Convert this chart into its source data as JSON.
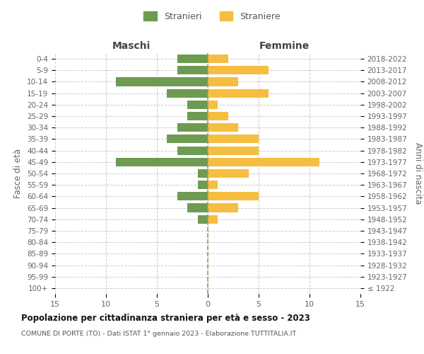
{
  "age_groups": [
    "100+",
    "95-99",
    "90-94",
    "85-89",
    "80-84",
    "75-79",
    "70-74",
    "65-69",
    "60-64",
    "55-59",
    "50-54",
    "45-49",
    "40-44",
    "35-39",
    "30-34",
    "25-29",
    "20-24",
    "15-19",
    "10-14",
    "5-9",
    "0-4"
  ],
  "birth_years": [
    "≤ 1922",
    "1923-1927",
    "1928-1932",
    "1933-1937",
    "1938-1942",
    "1943-1947",
    "1948-1952",
    "1953-1957",
    "1958-1962",
    "1963-1967",
    "1968-1972",
    "1973-1977",
    "1978-1982",
    "1983-1987",
    "1988-1992",
    "1993-1997",
    "1998-2002",
    "2003-2007",
    "2008-2012",
    "2013-2017",
    "2018-2022"
  ],
  "males": [
    0,
    0,
    0,
    0,
    0,
    0,
    1,
    2,
    3,
    1,
    1,
    9,
    3,
    4,
    3,
    2,
    2,
    4,
    9,
    3,
    3
  ],
  "females": [
    0,
    0,
    0,
    0,
    0,
    0,
    1,
    3,
    5,
    1,
    4,
    11,
    5,
    5,
    3,
    2,
    1,
    6,
    3,
    6,
    2
  ],
  "male_color": "#6d9b52",
  "female_color": "#f5be41",
  "title": "Popolazione per cittadinanza straniera per età e sesso - 2023",
  "subtitle": "COMUNE DI PORTE (TO) - Dati ISTAT 1° gennaio 2023 - Elaborazione TUTTITALIA.IT",
  "xlabel_left": "Maschi",
  "xlabel_right": "Femmine",
  "ylabel_left": "Fasce di età",
  "ylabel_right": "Anni di nascita",
  "legend_male": "Stranieri",
  "legend_female": "Straniere",
  "xlim": 15,
  "background_color": "#ffffff",
  "grid_color": "#cccccc",
  "bar_height": 0.75,
  "dashed_line_color": "#999966"
}
